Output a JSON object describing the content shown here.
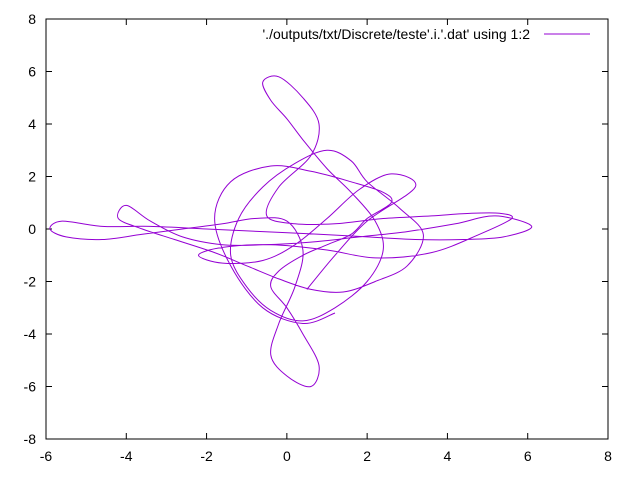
{
  "chart_data": {
    "type": "line",
    "title": "",
    "xlabel": "",
    "ylabel": "",
    "xlim": [
      -6,
      8
    ],
    "ylim": [
      -8,
      8
    ],
    "xticks": [
      "-6",
      "-4",
      "-2",
      "0",
      "2",
      "4",
      "6",
      "8"
    ],
    "yticks": [
      "-8",
      "-6",
      "-4",
      "-2",
      "0",
      "2",
      "4",
      "6",
      "8"
    ],
    "grid": false,
    "legend_position": "top-right",
    "series": [
      {
        "name": "'./outputs/txt/Discrete/teste'.i.'.dat' using 1:2",
        "color": "#9400d3",
        "x": [
          0.5,
          1.2,
          2.0,
          3.2,
          2.6,
          1.8,
          1.0,
          0.2,
          -0.6,
          -1.6,
          -2.2,
          -1.6,
          -0.4,
          1.0,
          2.2,
          3.6,
          4.8,
          5.6,
          5.3,
          4.6,
          3.6,
          2.4,
          1.2,
          0.2,
          -0.5,
          -0.2,
          0.6,
          0.8,
          0.4,
          -0.2,
          -0.6,
          -0.4,
          0.0,
          0.4,
          1.0,
          1.6,
          2.2,
          2.4,
          2.0,
          1.2,
          0.4,
          -0.4,
          -1.0,
          -1.4,
          -1.2,
          -0.6,
          0.2,
          1.0,
          1.6,
          2.0,
          2.8,
          3.4,
          3.0,
          2.2,
          1.4,
          0.6,
          -0.2,
          -1.0,
          -1.8,
          -2.8,
          -3.6,
          -4.2,
          -4.0,
          -3.4,
          -2.6,
          -1.6,
          -0.6,
          0.6,
          1.8,
          3.0,
          4.2,
          5.2,
          6.1,
          5.4,
          4.4,
          3.2,
          2.0,
          0.8,
          -0.6,
          -2.0,
          -3.4,
          -4.6,
          -5.6,
          -5.9,
          -5.5,
          -4.6,
          -3.6,
          -2.6,
          -1.6,
          -0.8,
          0.0,
          0.4,
          0.2,
          -0.2,
          -0.4,
          0.0,
          0.6,
          0.8,
          0.4,
          0.0,
          -0.4,
          -0.2,
          0.4,
          1.0,
          1.6,
          2.0,
          2.6,
          2.4,
          1.6,
          0.6,
          -0.4,
          -1.4,
          -1.8,
          -1.4,
          -0.6,
          0.4,
          1.2
        ],
        "y": [
          -2.3,
          -1.0,
          0.3,
          1.6,
          2.1,
          1.5,
          0.4,
          -0.6,
          -1.2,
          -1.3,
          -1.0,
          -0.7,
          -0.6,
          -0.8,
          -1.1,
          -0.9,
          -0.2,
          0.4,
          0.6,
          0.6,
          0.5,
          0.4,
          0.2,
          0.2,
          0.5,
          1.6,
          2.8,
          4.0,
          5.0,
          5.8,
          5.6,
          4.9,
          4.2,
          3.4,
          2.3,
          1.4,
          0.3,
          -0.8,
          -2.0,
          -3.0,
          -3.5,
          -3.1,
          -2.2,
          -1.0,
          0.4,
          1.6,
          2.5,
          3.0,
          2.6,
          1.8,
          0.8,
          -0.2,
          -1.4,
          -2.0,
          -2.4,
          -2.3,
          -1.9,
          -1.4,
          -0.9,
          -0.4,
          0.0,
          0.4,
          0.9,
          0.3,
          -0.3,
          -0.6,
          -0.6,
          -0.5,
          -0.3,
          -0.1,
          0.2,
          0.5,
          0.1,
          -0.3,
          -0.4,
          -0.4,
          -0.3,
          -0.2,
          -0.1,
          0.0,
          0.1,
          0.1,
          0.3,
          0.0,
          -0.3,
          -0.4,
          -0.2,
          0.0,
          0.2,
          0.4,
          0.3,
          -0.8,
          -2.2,
          -3.6,
          -4.8,
          -5.6,
          -6.0,
          -5.2,
          -4.0,
          -3.0,
          -2.2,
          -1.6,
          -1.0,
          -0.6,
          -0.2,
          0.4,
          1.0,
          1.4,
          1.8,
          2.2,
          2.4,
          1.8,
          0.4,
          -1.4,
          -3.0,
          -3.6,
          -3.2
        ]
      }
    ]
  }
}
